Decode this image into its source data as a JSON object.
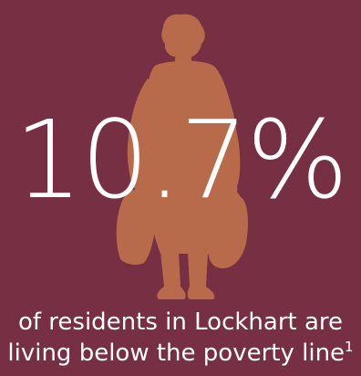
{
  "stat": {
    "value": "10.7%"
  },
  "caption": {
    "line1": "of residents in Lockhart are",
    "line2": "living below the poverty line",
    "footnote": "1"
  },
  "icon": "person-with-shopping-bags-icon",
  "colors": {
    "background": "#762f43",
    "silhouette": "#b86b4a",
    "text": "#ffffff"
  }
}
